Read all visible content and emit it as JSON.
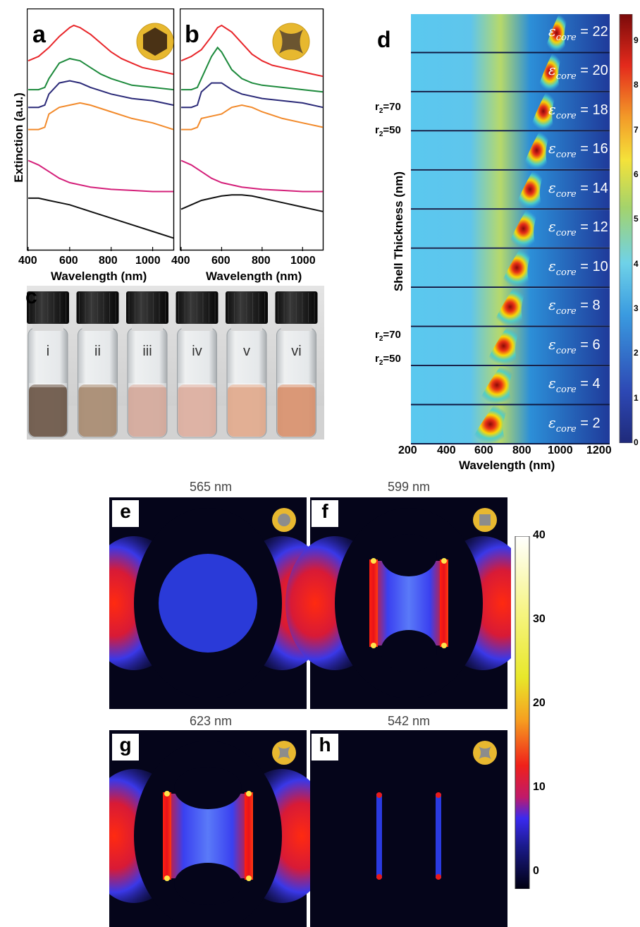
{
  "panels": {
    "a": {
      "letter": "a"
    },
    "b": {
      "letter": "b"
    },
    "c": {
      "letter": "c"
    },
    "d": {
      "letter": "d"
    },
    "e": {
      "letter": "e",
      "title": "565 nm"
    },
    "f": {
      "letter": "f",
      "title": "599 nm"
    },
    "g": {
      "letter": "g",
      "title": "623 nm"
    },
    "h": {
      "letter": "h",
      "title": "542 nm"
    }
  },
  "ab_axes": {
    "ylabel": "Extinction (a.u.)",
    "xlabel": "Wavelength (nm)",
    "a_ticks": [
      "400",
      "600",
      "800",
      "1000"
    ],
    "b_ticks": [
      "400",
      "600",
      "800",
      "1000"
    ]
  },
  "vials": [
    "i",
    "ii",
    "iii",
    "iv",
    "v",
    "vi"
  ],
  "d_axes": {
    "ylabel": "Shell Thickness (nm)",
    "xlabel": "Wavelength (nm)",
    "xticks": [
      "200",
      "400",
      "600",
      "800",
      "1000",
      "1200"
    ],
    "r_labels": [
      "r",
      "2",
      "=70",
      "=50"
    ],
    "colorbar_ticks": [
      "9",
      "8",
      "7",
      "6",
      "5",
      "4",
      "3",
      "2",
      "1",
      "0"
    ]
  },
  "d_strips": [
    {
      "symbol": "ε",
      "sub": "core",
      "value": "= 22"
    },
    {
      "symbol": "ε",
      "sub": "core",
      "value": "= 20"
    },
    {
      "symbol": "ε",
      "sub": "core",
      "value": "= 18"
    },
    {
      "symbol": "ε",
      "sub": "core",
      "value": "= 16"
    },
    {
      "symbol": "ε",
      "sub": "core",
      "value": "= 14"
    },
    {
      "symbol": "ε",
      "sub": "core",
      "value": "= 12"
    },
    {
      "symbol": "ε",
      "sub": "core",
      "value": "= 10"
    },
    {
      "symbol": "ε",
      "sub": "core",
      "value": "= 8"
    },
    {
      "symbol": "ε",
      "sub": "core",
      "value": "= 6"
    },
    {
      "symbol": "ε",
      "sub": "core",
      "value": "= 4"
    },
    {
      "symbol": "ε",
      "sub": "core",
      "value": "= 2"
    }
  ],
  "field_colorbar_ticks": [
    "40",
    "30",
    "20",
    "10",
    "0"
  ],
  "colors": {
    "red": "#e8262a",
    "green": "#1d8a3c",
    "navy": "#2b2a78",
    "orange": "#f28a2b",
    "pink": "#d4207a",
    "black": "#111111",
    "gold": "#e8b830",
    "map_bg": "#05051a"
  },
  "chart_data": [
    {
      "type": "line",
      "panel": "a",
      "x_unit": "nm",
      "xlim": [
        400,
        1100
      ],
      "xlabel": "Wavelength (nm)",
      "ylabel": "Extinction (a.u.)",
      "series": [
        {
          "color": "red",
          "x": [
            400,
            450,
            500,
            550,
            600,
            620,
            650,
            700,
            750,
            800,
            850,
            900,
            950,
            1000,
            1050,
            1100
          ],
          "y": [
            0.84,
            0.86,
            0.9,
            0.95,
            0.99,
            1.0,
            0.99,
            0.96,
            0.92,
            0.88,
            0.85,
            0.83,
            0.81,
            0.8,
            0.79,
            0.78
          ]
        },
        {
          "color": "green",
          "x": [
            400,
            450,
            480,
            500,
            550,
            600,
            650,
            700,
            750,
            800,
            900,
            1000,
            1100
          ],
          "y": [
            0.71,
            0.71,
            0.72,
            0.76,
            0.83,
            0.85,
            0.84,
            0.81,
            0.78,
            0.76,
            0.73,
            0.72,
            0.71
          ]
        },
        {
          "color": "navy",
          "x": [
            400,
            450,
            480,
            500,
            550,
            600,
            650,
            700,
            800,
            900,
            1000,
            1100
          ],
          "y": [
            0.63,
            0.63,
            0.64,
            0.69,
            0.74,
            0.75,
            0.74,
            0.72,
            0.69,
            0.67,
            0.66,
            0.64
          ]
        },
        {
          "color": "orange",
          "x": [
            400,
            450,
            480,
            500,
            550,
            600,
            650,
            700,
            800,
            900,
            1000,
            1100
          ],
          "y": [
            0.53,
            0.53,
            0.54,
            0.6,
            0.63,
            0.64,
            0.65,
            0.64,
            0.61,
            0.58,
            0.56,
            0.53
          ]
        },
        {
          "color": "pink",
          "x": [
            400,
            450,
            500,
            550,
            600,
            700,
            800,
            900,
            1000,
            1100
          ],
          "y": [
            0.39,
            0.37,
            0.34,
            0.31,
            0.29,
            0.27,
            0.26,
            0.255,
            0.25,
            0.25
          ]
        },
        {
          "color": "black",
          "x": [
            400,
            450,
            500,
            550,
            600,
            700,
            800,
            900,
            1000,
            1100
          ],
          "y": [
            0.22,
            0.22,
            0.21,
            0.2,
            0.19,
            0.16,
            0.13,
            0.1,
            0.07,
            0.04
          ]
        }
      ]
    },
    {
      "type": "line",
      "panel": "b",
      "x_unit": "nm",
      "xlim": [
        400,
        1100
      ],
      "xlabel": "Wavelength (nm)",
      "series": [
        {
          "color": "red",
          "x": [
            400,
            450,
            500,
            550,
            580,
            600,
            650,
            700,
            750,
            800,
            850,
            900,
            950,
            1000,
            1050,
            1100
          ],
          "y": [
            0.84,
            0.86,
            0.89,
            0.95,
            0.99,
            1.0,
            0.97,
            0.92,
            0.87,
            0.84,
            0.82,
            0.81,
            0.8,
            0.79,
            0.78,
            0.77
          ]
        },
        {
          "color": "green",
          "x": [
            400,
            450,
            480,
            500,
            550,
            580,
            600,
            650,
            700,
            750,
            800,
            900,
            1000,
            1100
          ],
          "y": [
            0.71,
            0.71,
            0.72,
            0.76,
            0.86,
            0.9,
            0.88,
            0.8,
            0.76,
            0.74,
            0.73,
            0.72,
            0.71,
            0.7
          ]
        },
        {
          "color": "navy",
          "x": [
            400,
            450,
            480,
            500,
            550,
            600,
            650,
            700,
            800,
            900,
            1000,
            1100
          ],
          "y": [
            0.63,
            0.63,
            0.64,
            0.7,
            0.74,
            0.74,
            0.71,
            0.69,
            0.67,
            0.66,
            0.65,
            0.63
          ]
        },
        {
          "color": "orange",
          "x": [
            400,
            450,
            480,
            500,
            550,
            600,
            650,
            700,
            750,
            800,
            900,
            1000,
            1100
          ],
          "y": [
            0.53,
            0.53,
            0.54,
            0.58,
            0.59,
            0.6,
            0.63,
            0.64,
            0.63,
            0.61,
            0.58,
            0.56,
            0.54
          ]
        },
        {
          "color": "pink",
          "x": [
            400,
            450,
            500,
            550,
            600,
            700,
            800,
            900,
            1000,
            1100
          ],
          "y": [
            0.39,
            0.37,
            0.34,
            0.31,
            0.29,
            0.27,
            0.26,
            0.255,
            0.25,
            0.25
          ]
        },
        {
          "color": "black",
          "x": [
            400,
            450,
            500,
            550,
            600,
            650,
            700,
            750,
            800,
            900,
            1000,
            1100
          ],
          "y": [
            0.17,
            0.19,
            0.21,
            0.22,
            0.23,
            0.235,
            0.235,
            0.23,
            0.22,
            0.2,
            0.18,
            0.16
          ]
        }
      ]
    }
  ]
}
